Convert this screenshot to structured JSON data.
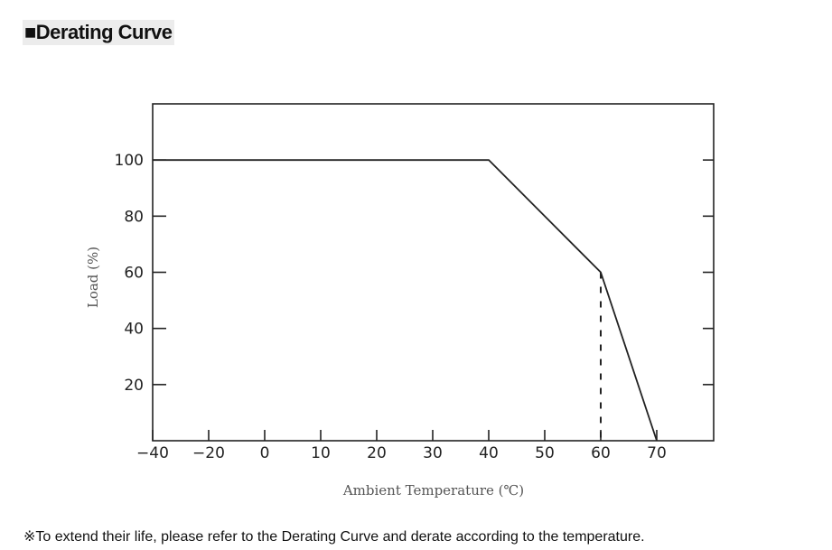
{
  "title": "■Derating Curve",
  "note": "※To extend their life, please refer to the Derating Curve and derate according to the temperature.",
  "chart_data": {
    "type": "line",
    "xlabel": "Ambient Temperature (℃)",
    "ylabel": "Load (%)",
    "x_ticks": [
      -40,
      -20,
      0,
      10,
      20,
      30,
      40,
      50,
      60,
      70
    ],
    "y_ticks": [
      20,
      40,
      60,
      80,
      100
    ],
    "xlim": [
      -40,
      80
    ],
    "ylim": [
      0,
      120
    ],
    "series": [
      {
        "x": [
          -40,
          40,
          60,
          70
        ],
        "y": [
          100,
          100,
          60,
          0
        ]
      }
    ],
    "reference_lines": [
      {
        "type": "vertical-dashed",
        "x": 60,
        "y_from": 0,
        "y_to": 60
      }
    ],
    "grid": false
  }
}
